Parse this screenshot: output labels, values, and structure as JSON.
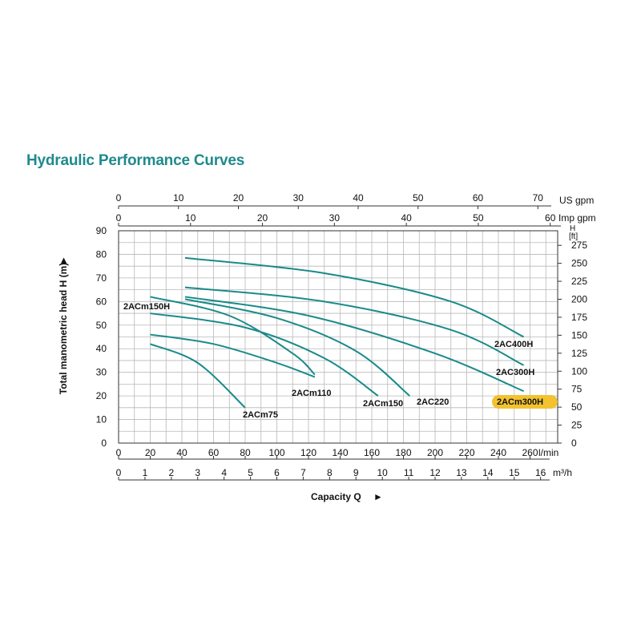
{
  "chart_data": {
    "type": "line",
    "title": "Hydraulic Performance Curves",
    "xlabel": "Capacity Q",
    "ylabel": "Total manometric head H (m)",
    "arrow_glyph": "►",
    "xlim": [
      0,
      280
    ],
    "ylim": [
      0,
      90
    ],
    "grid": true,
    "line_color": "#1a8a8a",
    "highlight_color": "#f2c230",
    "axes": {
      "lpm": {
        "unit": "l/min",
        "ticks": [
          0,
          20,
          40,
          60,
          80,
          100,
          120,
          140,
          160,
          180,
          200,
          220,
          240,
          260
        ]
      },
      "m3h": {
        "unit": "m³/h",
        "ticks": [
          0,
          1,
          2,
          3,
          4,
          5,
          6,
          7,
          8,
          9,
          10,
          11,
          12,
          13,
          14,
          15,
          16
        ]
      },
      "usgpm": {
        "unit": "US gpm",
        "ticks": [
          0,
          10,
          20,
          30,
          40,
          50,
          60,
          70
        ]
      },
      "impgpm": {
        "unit": "Imp gpm",
        "ticks": [
          0,
          10,
          20,
          30,
          40,
          50,
          60
        ]
      },
      "head_m": {
        "unit": "",
        "ticks": [
          0,
          10,
          20,
          30,
          40,
          50,
          60,
          70,
          80,
          90
        ]
      },
      "head_ft": {
        "unit": "H\n[ft]",
        "ticks": [
          0,
          25,
          50,
          75,
          100,
          125,
          150,
          175,
          200,
          225,
          250,
          275
        ]
      }
    },
    "series": [
      {
        "name": "2ACm75",
        "x": [
          20,
          50,
          80
        ],
        "y": [
          42,
          34,
          15
        ]
      },
      {
        "name": "2ACm110",
        "x": [
          20,
          60,
          100,
          124
        ],
        "y": [
          46,
          42,
          34,
          28
        ]
      },
      {
        "name": "2ACm150H",
        "x": [
          20,
          70,
          110,
          124
        ],
        "y": [
          62,
          54,
          38,
          29
        ]
      },
      {
        "name": "2ACm150",
        "x": [
          20,
          80,
          130,
          164
        ],
        "y": [
          55,
          49,
          36,
          20
        ]
      },
      {
        "name": "2AC220",
        "x": [
          42,
          100,
          150,
          184
        ],
        "y": [
          61,
          53,
          39,
          20
        ]
      },
      {
        "name": "2ACm300H",
        "x": [
          42,
          120,
          200,
          256
        ],
        "y": [
          62,
          54,
          38,
          22
        ]
      },
      {
        "name": "2AC300H",
        "x": [
          42,
          130,
          210,
          256
        ],
        "y": [
          66,
          60,
          48,
          33
        ]
      },
      {
        "name": "2AC400H",
        "x": [
          42,
          130,
          210,
          256
        ],
        "y": [
          78.5,
          72,
          60,
          45
        ]
      }
    ],
    "highlighted_series": "2ACm300H"
  }
}
